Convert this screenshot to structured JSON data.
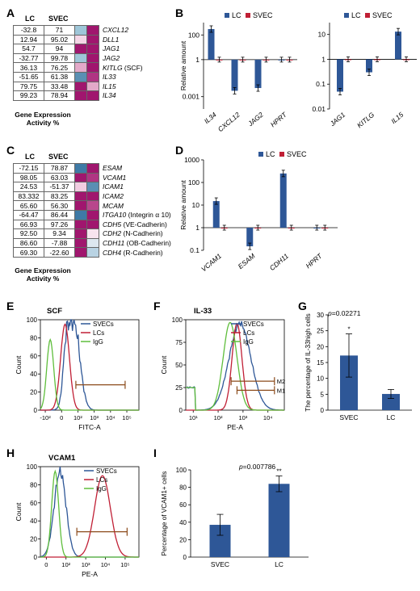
{
  "panels": {
    "A": "A",
    "B": "B",
    "C": "C",
    "D": "D",
    "E": "E",
    "F": "F",
    "G": "G",
    "H": "H",
    "I": "I"
  },
  "heatmap_A": {
    "col1": "LC",
    "col2": "SVEC",
    "caption": "Gene Expression Activity %",
    "rows": [
      {
        "lc": "-32.8",
        "svec": "71",
        "gene": "CXCL12",
        "extra": "",
        "c1": "#9ec6d8",
        "c2": "#a0166e"
      },
      {
        "lc": "12.94",
        "svec": "95.02",
        "gene": "DLL1",
        "extra": "",
        "c1": "#f4d6e6",
        "c2": "#a0166e"
      },
      {
        "lc": "54.7",
        "svec": "94",
        "gene": "JAG1",
        "extra": "",
        "c1": "#a0166e",
        "c2": "#a0166e"
      },
      {
        "lc": "-32.77",
        "svec": "99.78",
        "gene": "JAG2",
        "extra": "",
        "c1": "#9ec6d8",
        "c2": "#a0166e"
      },
      {
        "lc": "36.13",
        "svec": "76.25",
        "gene": "KITLG",
        "extra": " (SCF)",
        "c1": "#e3a9c9",
        "c2": "#a0166e"
      },
      {
        "lc": "-51.65",
        "svec": "61.38",
        "gene": "IL33",
        "extra": "",
        "c1": "#5a8fb3",
        "c2": "#b03583"
      },
      {
        "lc": "79.75",
        "svec": "33.48",
        "gene": "IL15",
        "extra": "",
        "c1": "#a0166e",
        "c2": "#e3a9c9"
      },
      {
        "lc": "99.23",
        "svec": "78.94",
        "gene": "IL34",
        "extra": "",
        "c1": "#a0166e",
        "c2": "#a0166e"
      }
    ]
  },
  "heatmap_C": {
    "col1": "LC",
    "col2": "SVEC",
    "caption": "Gene Expression Activity %",
    "rows": [
      {
        "lc": "-72.15",
        "svec": "78.87",
        "gene": "ESAM",
        "extra": "",
        "c1": "#3f7aa6",
        "c2": "#a0166e"
      },
      {
        "lc": "98.05",
        "svec": "63.03",
        "gene": "VCAM1",
        "extra": "",
        "c1": "#a0166e",
        "c2": "#b03583"
      },
      {
        "lc": "24.53",
        "svec": "-51.37",
        "gene": "ICAM1",
        "extra": "",
        "c1": "#f1cde1",
        "c2": "#5a8fb3"
      },
      {
        "lc": "83.332",
        "svec": "83.25",
        "gene": "ICAM2",
        "extra": "",
        "c1": "#a0166e",
        "c2": "#a0166e"
      },
      {
        "lc": "65.60",
        "svec": "56.30",
        "gene": "MCAM",
        "extra": "",
        "c1": "#a0166e",
        "c2": "#b8468c"
      },
      {
        "lc": "-64.47",
        "svec": "86.44",
        "gene": "ITGA10",
        "extra": " (Integrin α 10)",
        "c1": "#3f7aa6",
        "c2": "#a0166e"
      },
      {
        "lc": "66.93",
        "svec": "97.26",
        "gene": "CDH5",
        "extra": " (VE-Cadherin)",
        "c1": "#a0166e",
        "c2": "#a0166e"
      },
      {
        "lc": "92.50",
        "svec": "9.34",
        "gene": "CDH2",
        "extra": " (N-Cadherin)",
        "c1": "#a0166e",
        "c2": "#f7e3ee"
      },
      {
        "lc": "86.60",
        "svec": "-7.88",
        "gene": "CDH11",
        "extra": " (OB-Cadherin)",
        "c1": "#a0166e",
        "c2": "#dde7ef"
      },
      {
        "lc": "69.30",
        "svec": "-22.60",
        "gene": "CDH4",
        "extra": " (R-Cadherin)",
        "c1": "#a0166e",
        "c2": "#b9d3e3"
      }
    ]
  },
  "colors": {
    "lc": "#2e5797",
    "svec": "#c01f35",
    "igg": "#5fbe3c"
  },
  "chart_data": [
    {
      "id": "B1",
      "type": "bar",
      "ylabel": "Relative amount",
      "yscale": "log",
      "ylim": [
        0.0001,
        1000
      ],
      "yticks": [
        "0.001",
        "1",
        "100"
      ],
      "categories": [
        "IL34",
        "CXCL12",
        "JAG2",
        "HPRT"
      ],
      "legend": [
        "LC",
        "SVEC"
      ],
      "series": [
        {
          "name": "LC",
          "values": [
            300,
            0.003,
            0.005,
            1
          ]
        },
        {
          "name": "SVEC",
          "values": [
            1,
            1,
            1,
            1
          ]
        }
      ]
    },
    {
      "id": "B2",
      "type": "bar",
      "ylabel": "",
      "yscale": "log",
      "ylim": [
        0.01,
        30
      ],
      "yticks": [
        "0.01",
        "0.1",
        "1",
        "10"
      ],
      "categories": [
        "JAG1",
        "KITLG",
        "IL15"
      ],
      "legend": [
        "LC",
        "SVEC"
      ],
      "series": [
        {
          "name": "LC",
          "values": [
            0.05,
            0.3,
            13
          ]
        },
        {
          "name": "SVEC",
          "values": [
            1,
            1,
            1
          ]
        }
      ]
    },
    {
      "id": "D",
      "type": "bar",
      "ylabel": "Relative amount",
      "yscale": "log",
      "ylim": [
        0.1,
        1000
      ],
      "yticks": [
        "0.1",
        "1",
        "10",
        "100",
        "1000"
      ],
      "categories": [
        "VCAM1",
        "ESAM",
        "CDH11",
        "HPRT"
      ],
      "legend": [
        "LC",
        "SVEC"
      ],
      "series": [
        {
          "name": "LC",
          "values": [
            15,
            0.15,
            250,
            1
          ]
        },
        {
          "name": "SVEC",
          "values": [
            1,
            1,
            1,
            1
          ]
        }
      ]
    },
    {
      "id": "E",
      "type": "line",
      "title": "SCF",
      "xlabel": "FITC-A",
      "ylabel": "Count",
      "ylim": [
        0,
        100
      ],
      "yticks": [
        "0",
        "20",
        "40",
        "60",
        "80",
        "100"
      ],
      "xticks": [
        "-10²",
        "0",
        "10²",
        "10³",
        "10⁴",
        "10⁵"
      ],
      "legend": [
        "SVECs",
        "LCs",
        "IgG"
      ]
    },
    {
      "id": "F",
      "type": "line",
      "title": "IL-33",
      "xlabel": "PE-A",
      "ylabel": "Count",
      "ylim": [
        0,
        100
      ],
      "yticks": [
        "0",
        "25",
        "50",
        "75",
        "100"
      ],
      "xticks": [
        "10¹",
        "10²",
        "10³",
        "10⁴"
      ],
      "legend": [
        "SVECs",
        "LCs",
        "IgG"
      ],
      "gates": [
        "M2",
        "M1"
      ]
    },
    {
      "id": "G",
      "type": "bar",
      "ylabel": "The percentage of IL-33high cells",
      "ylim": [
        0,
        30
      ],
      "yticks": [
        "0",
        "5",
        "10",
        "15",
        "20",
        "25",
        "30"
      ],
      "categories": [
        "SVEC",
        "LC"
      ],
      "values": [
        17.2,
        5.1
      ],
      "errors": [
        6.8,
        1.4
      ],
      "pvalue": "p=0.02271",
      "star": "*"
    },
    {
      "id": "H",
      "type": "line",
      "title": "VCAM1",
      "xlabel": "PE-A",
      "ylabel": "Count",
      "ylim": [
        0,
        100
      ],
      "yticks": [
        "0",
        "20",
        "40",
        "60",
        "80",
        "100"
      ],
      "xticks": [
        "0",
        "10²",
        "10³",
        "10⁴",
        "10⁵"
      ],
      "legend": [
        "SVECs",
        "LCs",
        "IgG"
      ]
    },
    {
      "id": "I",
      "type": "bar",
      "ylabel": "Percentage of VCAM1+ cells",
      "ylim": [
        0,
        100
      ],
      "yticks": [
        "0",
        "20",
        "40",
        "60",
        "80",
        "100"
      ],
      "categories": [
        "SVEC",
        "LC"
      ],
      "values": [
        37,
        84
      ],
      "errors": [
        12,
        9
      ],
      "pvalue": "p=0.007786",
      "star": "**"
    }
  ]
}
